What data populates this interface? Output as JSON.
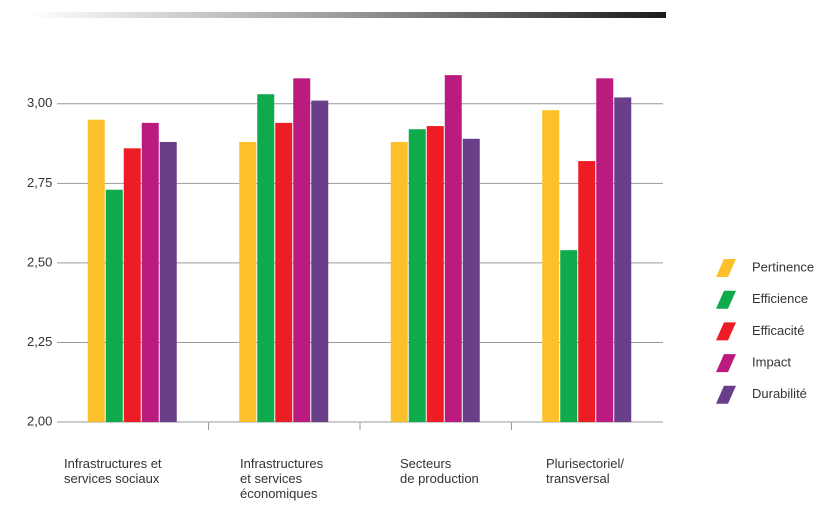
{
  "chart_data": {
    "type": "bar",
    "categories": [
      "Infrastructures et\nservices sociaux",
      "Infrastructures\net services\néconomiques",
      "Secteurs\nde production",
      "Plurisectoriel/\ntransversal"
    ],
    "series": [
      {
        "name": "Pertinence",
        "color": "#fcc02a",
        "values": [
          2.95,
          2.88,
          2.88,
          2.98
        ]
      },
      {
        "name": "Efficience",
        "color": "#0faa4b",
        "values": [
          2.73,
          3.03,
          2.92,
          2.54
        ]
      },
      {
        "name": "Efficacité",
        "color": "#ee1c25",
        "values": [
          2.86,
          2.94,
          2.93,
          2.82
        ]
      },
      {
        "name": "Impact",
        "color": "#bb1a7e",
        "values": [
          2.94,
          3.08,
          3.09,
          3.08
        ]
      },
      {
        "name": "Durabilité",
        "color": "#6a3f8a",
        "values": [
          2.88,
          3.01,
          2.89,
          3.02
        ]
      }
    ],
    "ylim": [
      2,
      3.125
    ],
    "yticks": [
      {
        "value": 2,
        "label": "2,00"
      },
      {
        "value": 2.25,
        "label": "2,25"
      },
      {
        "value": 2.5,
        "label": "2,50"
      },
      {
        "value": 2.75,
        "label": "2,75"
      },
      {
        "value": 3,
        "label": "3,00"
      }
    ],
    "grid": true,
    "legend": "right"
  }
}
